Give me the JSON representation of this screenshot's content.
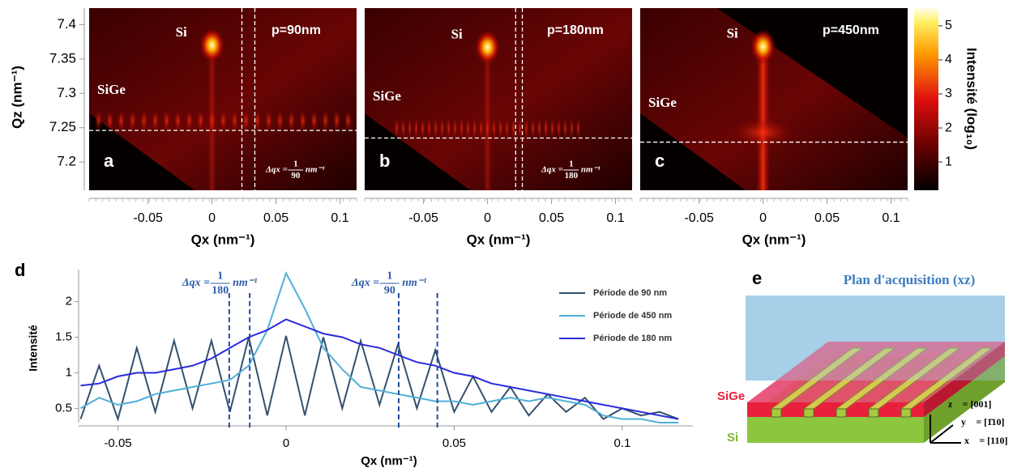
{
  "heatmaps": {
    "y_label": "Qz (nm⁻¹)",
    "x_label": "Qx (nm⁻¹)",
    "xlim": [
      -0.096,
      0.113
    ],
    "ylim": [
      7.159,
      7.424
    ],
    "xticks": [
      -0.05,
      0,
      0.05,
      0.1
    ],
    "yticks": [
      7.2,
      7.25,
      7.3,
      7.35,
      7.4
    ],
    "colorbar": {
      "label": "Intensité (log₁₀)",
      "lim": [
        0.17,
        5.52
      ],
      "ticks": [
        1,
        2,
        3,
        4,
        5
      ]
    },
    "panels": [
      {
        "letter": "a",
        "period": "p=90nm",
        "si": "Si",
        "sige": "SiGe",
        "peak": [
          0,
          7.37
        ],
        "delta": {
          "prefix": "Δqx =",
          "num": "1",
          "den": "90",
          "unit": "nm⁻¹"
        },
        "vlines": [
          0.0234,
          0.0335
        ],
        "hline": 7.246
      },
      {
        "letter": "b",
        "period": "p=180nm",
        "si": "Si",
        "sige": "SiGe",
        "peak": [
          0,
          7.367
        ],
        "delta": {
          "prefix": "Δqx =",
          "num": "1",
          "den": "180",
          "unit": "nm⁻¹"
        },
        "vlines": [
          0.022,
          0.0272
        ],
        "hline": 7.235
      },
      {
        "letter": "c",
        "period": "p=450nm",
        "si": "Si",
        "sige": "SiGe",
        "peak": [
          0,
          7.368
        ],
        "hline": 7.229
      }
    ]
  },
  "chart_data": {
    "type": "line",
    "label": "d",
    "x_label": "Qx (nm⁻¹)",
    "y_label": "Intensité",
    "x": [
      -0.0611,
      -0.0556,
      -0.05,
      -0.0444,
      -0.0389,
      -0.0333,
      -0.0278,
      -0.0222,
      -0.0167,
      -0.0111,
      -0.0056,
      0,
      0.0056,
      0.0111,
      0.0167,
      0.0222,
      0.0278,
      0.0333,
      0.0389,
      0.0444,
      0.05,
      0.0556,
      0.0611,
      0.0667,
      0.0722,
      0.0778,
      0.0833,
      0.0889,
      0.0944,
      0.1,
      0.1056,
      0.1111,
      0.1167
    ],
    "series": [
      {
        "name": "Période de 90 nm",
        "color": "#34506e",
        "values": [
          0.35,
          1.1,
          0.35,
          1.35,
          0.45,
          1.45,
          0.5,
          1.45,
          0.45,
          1.5,
          0.4,
          1.52,
          0.4,
          1.5,
          0.5,
          1.45,
          0.55,
          1.4,
          0.5,
          1.32,
          0.45,
          0.95,
          0.45,
          0.8,
          0.4,
          0.7,
          0.45,
          0.65,
          0.35,
          0.5,
          0.4,
          0.45,
          0.35
        ]
      },
      {
        "name": "Période de 450 nm",
        "color": "#4fb0d8",
        "values": [
          0.5,
          0.65,
          0.55,
          0.6,
          0.7,
          0.75,
          0.8,
          0.85,
          0.9,
          1.1,
          1.6,
          2.4,
          1.9,
          1.35,
          1.05,
          0.8,
          0.75,
          0.7,
          0.65,
          0.6,
          0.6,
          0.55,
          0.6,
          0.65,
          0.6,
          0.65,
          0.6,
          0.55,
          0.4,
          0.35,
          0.35,
          0.3,
          0.3
        ]
      },
      {
        "name": "Période de 180 nm",
        "color": "#2a2adb",
        "values": [
          0.82,
          0.85,
          0.95,
          1.0,
          1.0,
          1.05,
          1.1,
          1.2,
          1.35,
          1.5,
          1.6,
          1.75,
          1.65,
          1.55,
          1.5,
          1.4,
          1.35,
          1.25,
          1.15,
          1.1,
          1.0,
          0.95,
          0.85,
          0.8,
          0.75,
          0.7,
          0.65,
          0.6,
          0.55,
          0.5,
          0.45,
          0.4,
          0.35
        ]
      }
    ],
    "xlim": [
      -0.0617,
      0.121
    ],
    "ylim": [
      0.3,
      2.45
    ],
    "xticks": [
      -0.05,
      0,
      0.05,
      0.1
    ],
    "yticks": [
      0.5,
      1,
      1.5,
      2
    ],
    "annotations": [
      {
        "x": [
          -0.0169,
          -0.0108
        ],
        "prefix": "Δqx =",
        "num": "1",
        "den": "180",
        "unit": "nm⁻¹"
      },
      {
        "x": [
          0.0335,
          0.045
        ],
        "prefix": "Δqx =",
        "num": "1",
        "den": "90",
        "unit": "nm⁻¹"
      }
    ]
  },
  "diagram": {
    "label": "e",
    "title": "Plan d'acquisition (xz)",
    "sige": "SiGe",
    "si": "Si",
    "axes": [
      "z⃗ = [001]",
      "y⃗ = [1̄10]",
      "x⃗ = [110]"
    ]
  }
}
